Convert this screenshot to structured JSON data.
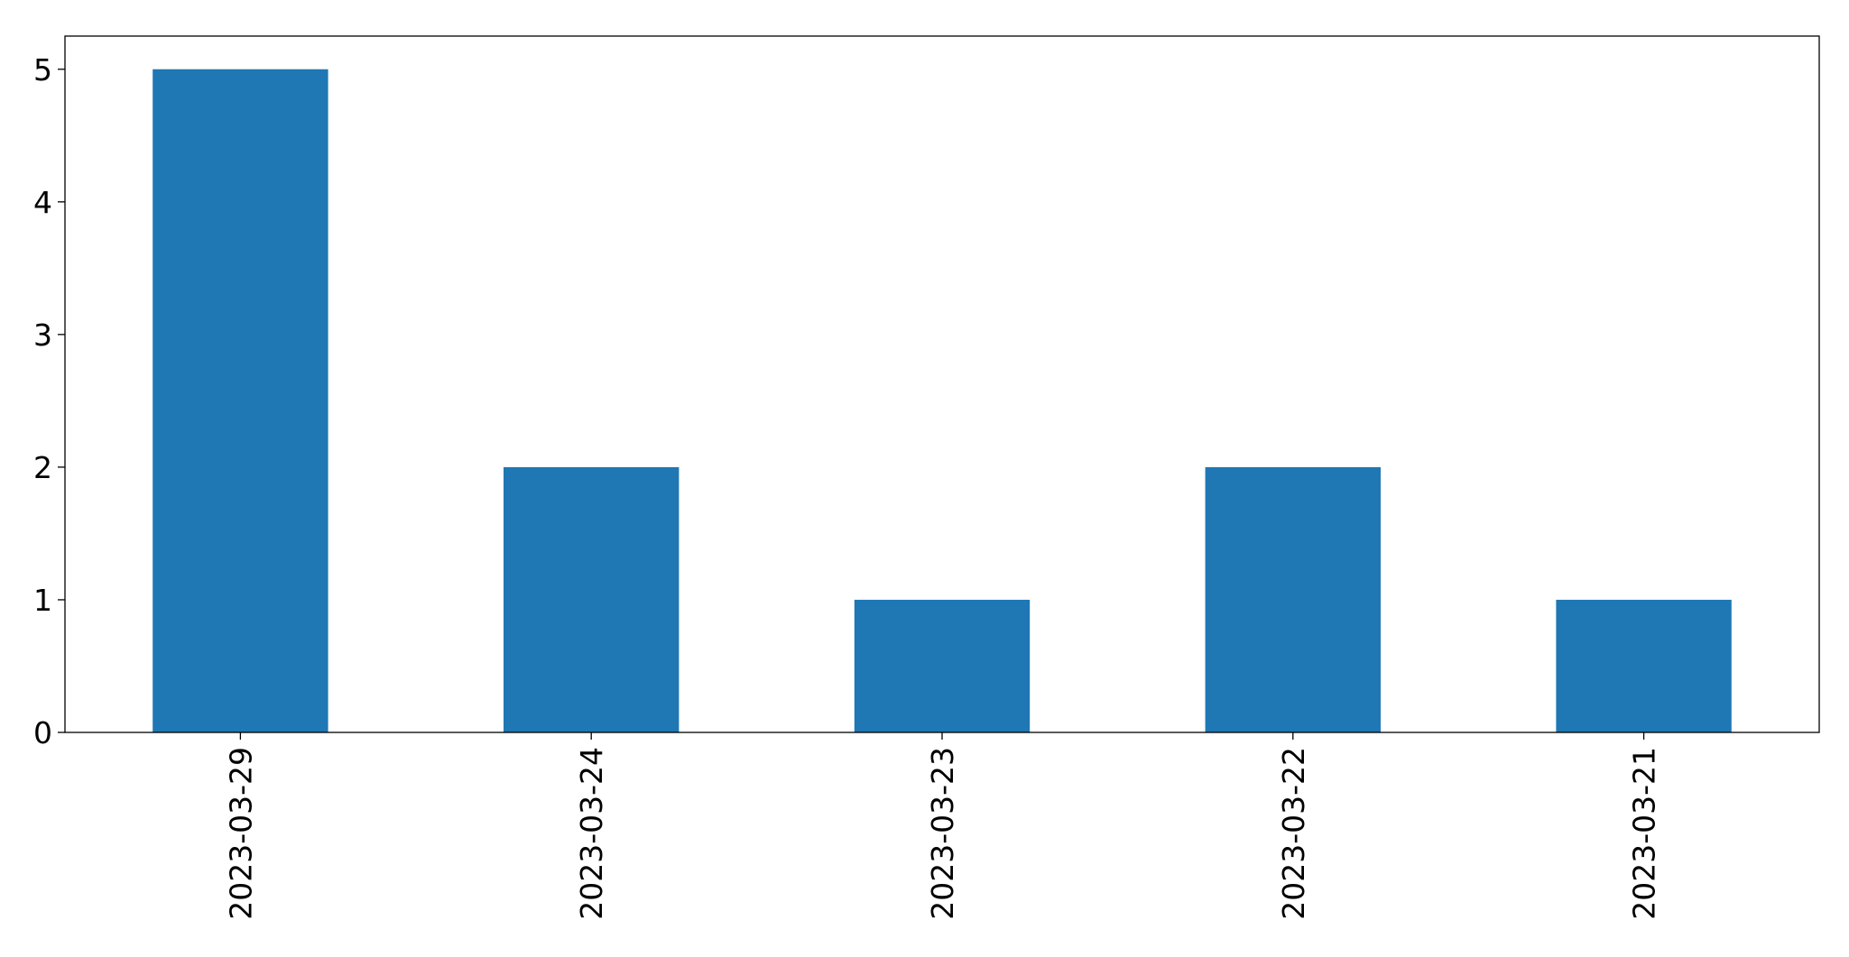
{
  "chart_data": {
    "type": "bar",
    "categories": [
      "2023-03-29",
      "2023-03-24",
      "2023-03-23",
      "2023-03-22",
      "2023-03-21"
    ],
    "values": [
      5,
      2,
      1,
      2,
      1
    ],
    "title": "",
    "xlabel": "",
    "ylabel": "",
    "ylim": [
      0,
      5.25
    ],
    "yticks": [
      0,
      1,
      2,
      3,
      4,
      5
    ],
    "bar_color": "#1f77b4",
    "grid": false,
    "legend": "none",
    "xtick_rotation": "vertical"
  }
}
